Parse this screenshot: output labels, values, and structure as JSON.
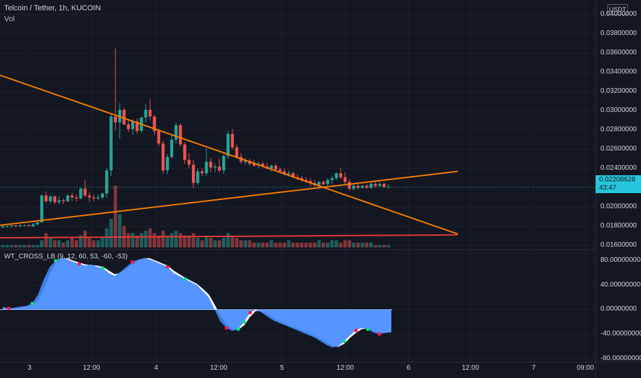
{
  "header": {
    "title": "Telcoin / Tether, 1h, KUCOIN",
    "volume_label": "Vol",
    "currency_badge": "USDT"
  },
  "indicator": {
    "label": "WT_CROSS_LB (9, 12, 60, 53, -60, -53)"
  },
  "last_price": {
    "value": "0.02208628",
    "countdown": "43:47",
    "color": "#26c6da"
  },
  "colors": {
    "up": "#26a69a",
    "down": "#ef5350",
    "trendline": "#f57c00",
    "support": "#e53935",
    "wt_fill": "#448aff"
  },
  "chart_data": [
    {
      "type": "candlestick",
      "y_ticks": [
        "0.04000000",
        "0.03800000",
        "0.03600000",
        "0.03400000",
        "0.03200000",
        "0.03000000",
        "0.02800000",
        "0.02600000",
        "0.02400000",
        "0.02200000",
        "0.02000000",
        "0.01800000",
        "0.01600000"
      ],
      "ylim": [
        0.0158,
        0.0408
      ],
      "x_ticks": [
        "3",
        "12:00",
        "4",
        "12:00",
        "5",
        "12:00",
        "6",
        "12:00",
        "7",
        "09:00"
      ],
      "candles": [
        [
          0.0179,
          0.0181,
          0.0178,
          0.018
        ],
        [
          0.018,
          0.0181,
          0.0179,
          0.018
        ],
        [
          0.018,
          0.0181,
          0.0179,
          0.0181
        ],
        [
          0.0181,
          0.0181,
          0.0179,
          0.018
        ],
        [
          0.018,
          0.0182,
          0.0179,
          0.0181
        ],
        [
          0.0181,
          0.0182,
          0.018,
          0.0181
        ],
        [
          0.0181,
          0.0182,
          0.018,
          0.018
        ],
        [
          0.018,
          0.0183,
          0.0179,
          0.0182
        ],
        [
          0.0182,
          0.0185,
          0.0181,
          0.0184
        ],
        [
          0.0184,
          0.0213,
          0.0184,
          0.0212
        ],
        [
          0.0212,
          0.0216,
          0.0204,
          0.0206
        ],
        [
          0.0206,
          0.0212,
          0.0204,
          0.0211
        ],
        [
          0.0211,
          0.0212,
          0.0203,
          0.0205
        ],
        [
          0.0205,
          0.0211,
          0.0203,
          0.0207
        ],
        [
          0.0207,
          0.0209,
          0.0203,
          0.0206
        ],
        [
          0.0206,
          0.0213,
          0.0205,
          0.0212
        ],
        [
          0.0212,
          0.0215,
          0.0206,
          0.021
        ],
        [
          0.021,
          0.0213,
          0.0206,
          0.0209
        ],
        [
          0.0209,
          0.022,
          0.0208,
          0.0219
        ],
        [
          0.0219,
          0.0228,
          0.021,
          0.0212
        ],
        [
          0.0212,
          0.0215,
          0.0205,
          0.021
        ],
        [
          0.021,
          0.0213,
          0.0206,
          0.0209
        ],
        [
          0.0209,
          0.0213,
          0.0207,
          0.021
        ],
        [
          0.021,
          0.0215,
          0.0208,
          0.0214
        ],
        [
          0.0214,
          0.0241,
          0.021,
          0.0238
        ],
        [
          0.0238,
          0.0297,
          0.0232,
          0.0294
        ],
        [
          0.0294,
          0.0365,
          0.028,
          0.0288
        ],
        [
          0.0288,
          0.0308,
          0.0271,
          0.0301
        ],
        [
          0.0301,
          0.0303,
          0.0285,
          0.0286
        ],
        [
          0.0286,
          0.029,
          0.0278,
          0.0281
        ],
        [
          0.0281,
          0.0291,
          0.0275,
          0.0289
        ],
        [
          0.0289,
          0.0292,
          0.0276,
          0.0279
        ],
        [
          0.0279,
          0.0294,
          0.0277,
          0.0293
        ],
        [
          0.0293,
          0.0307,
          0.0288,
          0.0301
        ],
        [
          0.0301,
          0.0312,
          0.029,
          0.0294
        ],
        [
          0.0294,
          0.0296,
          0.0275,
          0.0279
        ],
        [
          0.0279,
          0.0281,
          0.0263,
          0.0266
        ],
        [
          0.0266,
          0.0269,
          0.0235,
          0.0238
        ],
        [
          0.0238,
          0.0255,
          0.0234,
          0.0252
        ],
        [
          0.0252,
          0.0275,
          0.025,
          0.027
        ],
        [
          0.027,
          0.0288,
          0.0266,
          0.0285
        ],
        [
          0.0285,
          0.0287,
          0.0263,
          0.0265
        ],
        [
          0.0265,
          0.0267,
          0.0245,
          0.0249
        ],
        [
          0.0249,
          0.0256,
          0.024,
          0.0244
        ],
        [
          0.0244,
          0.0249,
          0.022,
          0.0225
        ],
        [
          0.0225,
          0.024,
          0.0223,
          0.0237
        ],
        [
          0.0237,
          0.024,
          0.0232,
          0.0235
        ],
        [
          0.0235,
          0.0261,
          0.0232,
          0.0247
        ],
        [
          0.0247,
          0.0251,
          0.0236,
          0.0241
        ],
        [
          0.0241,
          0.0245,
          0.0236,
          0.0242
        ],
        [
          0.0242,
          0.025,
          0.0236,
          0.0238
        ],
        [
          0.0238,
          0.0255,
          0.0234,
          0.0253
        ],
        [
          0.0253,
          0.0279,
          0.025,
          0.0276
        ],
        [
          0.0276,
          0.0281,
          0.026,
          0.0262
        ],
        [
          0.0262,
          0.0265,
          0.025,
          0.0252
        ],
        [
          0.0252,
          0.0256,
          0.0245,
          0.0247
        ],
        [
          0.0247,
          0.0251,
          0.0244,
          0.0248
        ],
        [
          0.0248,
          0.025,
          0.0243,
          0.0245
        ],
        [
          0.0245,
          0.0249,
          0.0242,
          0.0243
        ],
        [
          0.0243,
          0.0247,
          0.024,
          0.0245
        ],
        [
          0.0245,
          0.0247,
          0.0241,
          0.0242
        ],
        [
          0.0242,
          0.0246,
          0.0239,
          0.024
        ],
        [
          0.024,
          0.0244,
          0.0237,
          0.0243
        ],
        [
          0.0243,
          0.0245,
          0.0238,
          0.0239
        ],
        [
          0.0239,
          0.0241,
          0.0236,
          0.0237
        ],
        [
          0.0237,
          0.024,
          0.0233,
          0.0234
        ],
        [
          0.0234,
          0.0238,
          0.0232,
          0.0235
        ],
        [
          0.0235,
          0.0237,
          0.023,
          0.0231
        ],
        [
          0.0231,
          0.0234,
          0.0228,
          0.023
        ],
        [
          0.023,
          0.0232,
          0.0226,
          0.0228
        ],
        [
          0.0228,
          0.0231,
          0.0225,
          0.0227
        ],
        [
          0.0227,
          0.023,
          0.0222,
          0.0225
        ],
        [
          0.0225,
          0.0228,
          0.0221,
          0.0223
        ],
        [
          0.0223,
          0.0227,
          0.0219,
          0.0226
        ],
        [
          0.0226,
          0.0228,
          0.0222,
          0.0224
        ],
        [
          0.0224,
          0.023,
          0.0222,
          0.0228
        ],
        [
          0.0228,
          0.0232,
          0.0224,
          0.023
        ],
        [
          0.023,
          0.0236,
          0.0228,
          0.0235
        ],
        [
          0.0235,
          0.0241,
          0.0229,
          0.0231
        ],
        [
          0.0231,
          0.0236,
          0.0224,
          0.0226
        ],
        [
          0.0226,
          0.0229,
          0.0217,
          0.0219
        ],
        [
          0.0219,
          0.0224,
          0.0217,
          0.0222
        ],
        [
          0.0222,
          0.0225,
          0.0218,
          0.022
        ],
        [
          0.022,
          0.0223,
          0.0219,
          0.0222
        ],
        [
          0.0222,
          0.0224,
          0.0219,
          0.022
        ],
        [
          0.022,
          0.0226,
          0.0219,
          0.0224
        ],
        [
          0.0224,
          0.0227,
          0.022,
          0.0222
        ],
        [
          0.0222,
          0.0226,
          0.0221,
          0.0224
        ],
        [
          0.0224,
          0.0225,
          0.022,
          0.0221
        ],
        [
          0.0221,
          0.0224,
          0.022,
          0.0221
        ]
      ],
      "volume": [
        1,
        1,
        1,
        1,
        1,
        1,
        1,
        1,
        1,
        3,
        6,
        4,
        3,
        3,
        2,
        3,
        4,
        3,
        5,
        7,
        4,
        3,
        3,
        4,
        8,
        12,
        26,
        14,
        9,
        6,
        6,
        5,
        6,
        7,
        8,
        6,
        5,
        7,
        5,
        6,
        7,
        6,
        5,
        5,
        6,
        4,
        3,
        5,
        4,
        3,
        3,
        4,
        6,
        5,
        4,
        3,
        3,
        3,
        2,
        2,
        2,
        2,
        3,
        2,
        2,
        2,
        3,
        2,
        2,
        2,
        2,
        2,
        2,
        3,
        2,
        2,
        3,
        3,
        2,
        3,
        3,
        2,
        2,
        2,
        2,
        2,
        1,
        1,
        1,
        1
      ],
      "trendlines": [
        {
          "kind": "descending-resistance",
          "points": [
            [
              0,
              0.0337
            ],
            [
              105,
              0.0172
            ]
          ]
        },
        {
          "kind": "ascending-support",
          "points": [
            [
              0,
              0.0181
            ],
            [
              105,
              0.0237
            ]
          ]
        },
        {
          "kind": "horizontal-support",
          "points": [
            [
              0,
              0.0168
            ],
            [
              105,
              0.0171
            ]
          ]
        }
      ]
    },
    {
      "type": "area",
      "name": "WT_CROSS_LB",
      "y_ticks": [
        "80.00000000",
        "40.00000000",
        "0.00000000",
        "-40.00000000",
        "-80.00000000"
      ],
      "ylim": [
        -85,
        95
      ],
      "wt1": [
        4,
        2,
        3,
        5,
        6,
        10,
        25,
        50,
        70,
        80,
        85,
        82,
        78,
        75,
        72,
        74,
        70,
        68,
        60,
        55,
        62,
        70,
        78,
        82,
        84,
        82,
        78,
        74,
        70,
        60,
        55,
        50,
        45,
        40,
        30,
        20,
        0,
        -20,
        -30,
        -35,
        -32,
        -20,
        -5,
        0,
        -5,
        -12,
        -18,
        -22,
        -26,
        -30,
        -34,
        -38,
        -42,
        -46,
        -52,
        -58,
        -62,
        -60,
        -52,
        -42,
        -34,
        -30,
        -32,
        -38,
        -40,
        -38,
        -37
      ],
      "wt2": [
        4,
        2,
        2,
        3,
        5,
        7,
        15,
        35,
        58,
        75,
        83,
        84,
        80,
        77,
        74,
        73,
        72,
        70,
        64,
        58,
        60,
        66,
        74,
        80,
        84,
        84,
        80,
        76,
        72,
        64,
        58,
        52,
        47,
        42,
        34,
        25,
        8,
        -10,
        -24,
        -32,
        -33,
        -26,
        -12,
        -2,
        -3,
        -8,
        -14,
        -19,
        -23,
        -27,
        -31,
        -35,
        -39,
        -43,
        -48,
        -54,
        -59,
        -61,
        -56,
        -46,
        -38,
        -32,
        -31,
        -35,
        -38,
        -38,
        -37
      ],
      "cross_up": [
        5,
        9,
        17,
        31,
        40,
        41,
        58,
        62
      ],
      "cross_down": [
        1,
        13,
        22,
        28,
        38,
        42,
        60,
        64
      ]
    }
  ]
}
